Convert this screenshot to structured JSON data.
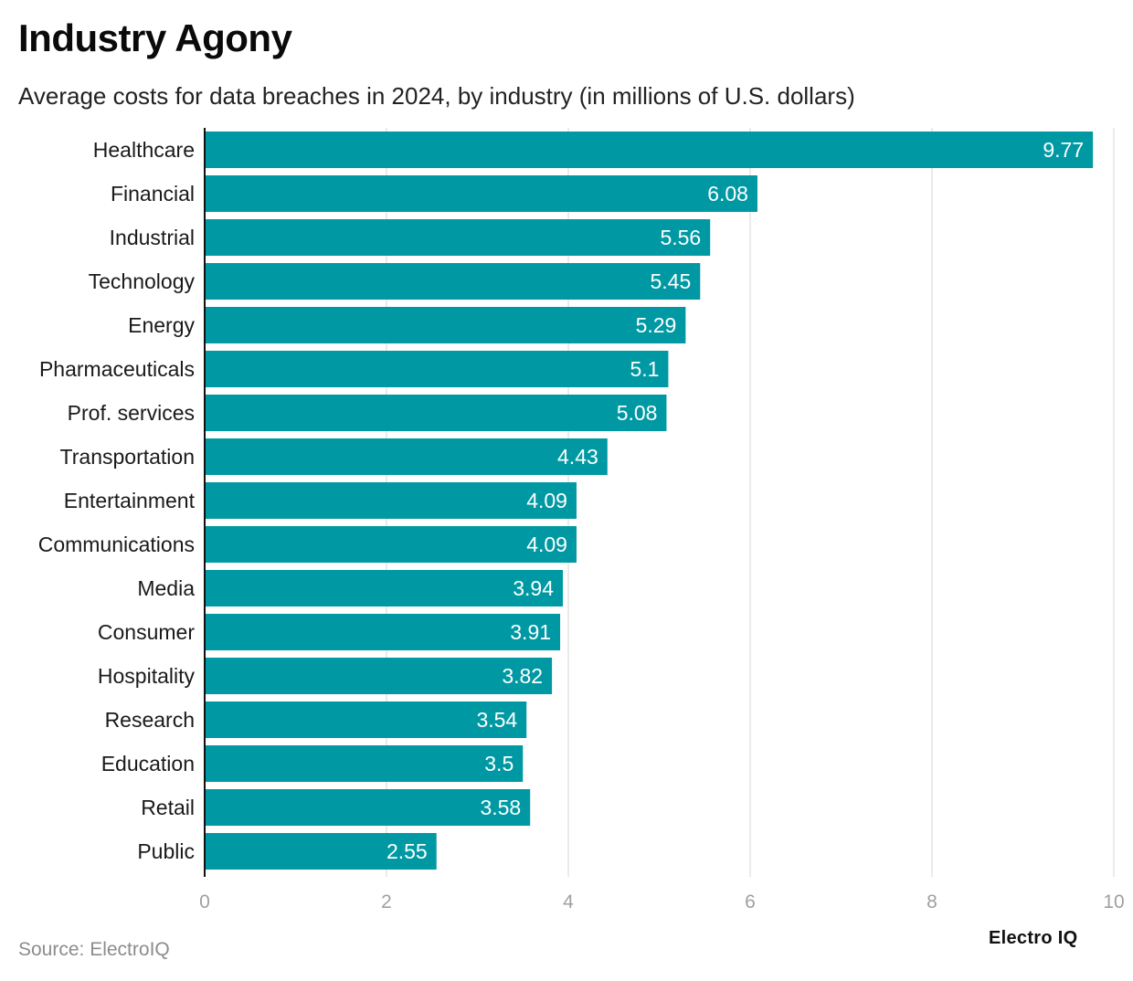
{
  "header": {
    "title": "Industry Agony",
    "subtitle": "Average costs for data breaches in 2024, by industry (in millions of U.S. dollars)"
  },
  "footer": {
    "source": "Source: ElectroIQ",
    "brand": "Electro IQ"
  },
  "colors": {
    "bar": "#0099a3",
    "grid": "#e4e4e4",
    "axis": "#111111",
    "tick": "#a0a0a0",
    "label": "#1a1a1a",
    "value_label": "#ffffff"
  },
  "chart_data": {
    "type": "bar",
    "orientation": "horizontal",
    "title": "Industry Agony",
    "subtitle": "Average costs for data breaches in 2024, by industry (in millions of U.S. dollars)",
    "xlabel": "",
    "ylabel": "",
    "xlim": [
      0,
      10
    ],
    "xticks": [
      0,
      2,
      4,
      6,
      8,
      10
    ],
    "grid": true,
    "categories": [
      "Healthcare",
      "Financial",
      "Industrial",
      "Technology",
      "Energy",
      "Pharmaceuticals",
      "Prof. services",
      "Transportation",
      "Entertainment",
      "Communications",
      "Media",
      "Consumer",
      "Hospitality",
      "Research",
      "Education",
      "Retail",
      "Public"
    ],
    "values": [
      9.77,
      6.08,
      5.56,
      5.45,
      5.29,
      5.1,
      5.08,
      4.43,
      4.09,
      4.09,
      3.94,
      3.91,
      3.82,
      3.54,
      3.5,
      3.58,
      2.55
    ],
    "value_labels": [
      "9.77",
      "6.08",
      "5.56",
      "5.45",
      "5.29",
      "5.1",
      "5.08",
      "4.43",
      "4.09",
      "4.09",
      "3.94",
      "3.91",
      "3.82",
      "3.54",
      "3.5",
      "3.58",
      "2.55"
    ]
  }
}
